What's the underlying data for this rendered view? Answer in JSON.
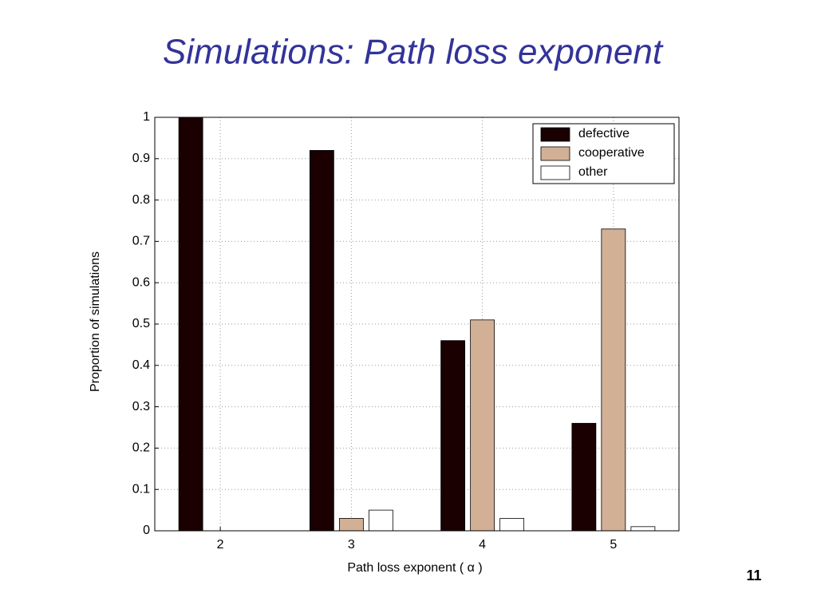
{
  "page_number": "11",
  "chart_data": {
    "type": "bar",
    "title": "Simulations: Path loss exponent",
    "xlabel": "Path loss exponent ( α )",
    "ylabel": "Proportion of simulations",
    "categories": [
      "2",
      "3",
      "4",
      "5"
    ],
    "series": [
      {
        "name": "defective",
        "color": "#1a0000",
        "values": [
          1,
          0.92,
          0.46,
          0.26
        ]
      },
      {
        "name": "cooperative",
        "color": "#d2b096",
        "values": [
          0,
          0.03,
          0.51,
          0.73
        ]
      },
      {
        "name": "other",
        "color": "#ffffff",
        "values": [
          0,
          0.05,
          0.03,
          0.01
        ]
      }
    ],
    "ylim": [
      0,
      1
    ],
    "yticks": [
      0,
      0.1,
      0.2,
      0.3,
      0.4,
      0.5,
      0.6,
      0.7,
      0.8,
      0.9,
      1
    ],
    "grid": true,
    "legend": "upper right"
  }
}
